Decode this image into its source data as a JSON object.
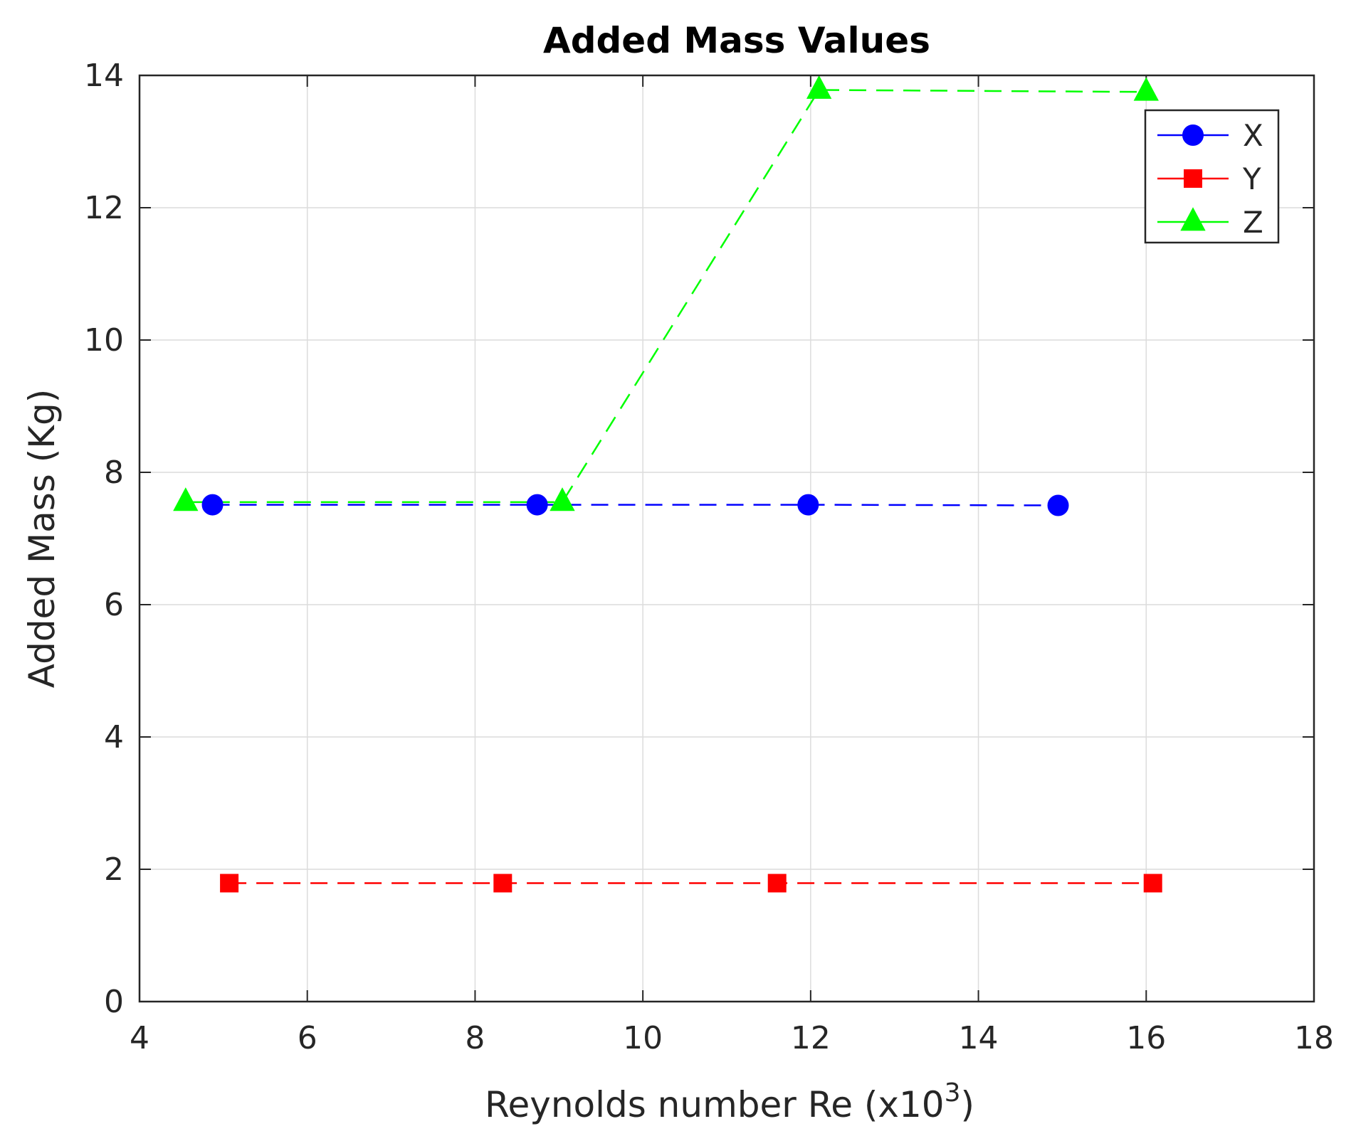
{
  "chart_data": {
    "type": "line",
    "title": "Added Mass Values",
    "xlabel": "Reynolds number Re (x10",
    "xlabel_exponent": "3",
    "xlabel_suffix": ")",
    "ylabel": "Added Mass (Kg)",
    "xlim": [
      4,
      18
    ],
    "ylim": [
      0,
      14
    ],
    "xticks": [
      4,
      6,
      8,
      10,
      12,
      14,
      16,
      18
    ],
    "yticks": [
      0,
      2,
      4,
      6,
      8,
      10,
      12,
      14
    ],
    "grid": true,
    "legend_position": "top-right",
    "series": [
      {
        "name": "X",
        "color": "#0000ff",
        "marker": "circle",
        "x": [
          4.87,
          8.74,
          11.97,
          14.95
        ],
        "y": [
          7.51,
          7.51,
          7.51,
          7.5
        ]
      },
      {
        "name": "Y",
        "color": "#ff0000",
        "marker": "square",
        "x": [
          5.07,
          8.33,
          11.6,
          16.08
        ],
        "y": [
          1.79,
          1.79,
          1.79,
          1.79
        ]
      },
      {
        "name": "Z",
        "color": "#00ff00",
        "marker": "triangle",
        "x": [
          4.55,
          9.04,
          12.1,
          16.0
        ],
        "y": [
          7.55,
          7.55,
          13.78,
          13.75
        ]
      }
    ]
  }
}
